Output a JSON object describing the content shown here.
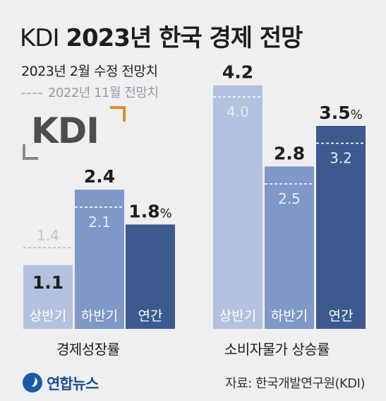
{
  "title_prefix": "KDI",
  "title_main": "2023년 한국 경제 전망",
  "legend": {
    "current": "2023년 2월 수정 전망치",
    "previous": "2022년 11월 전망치"
  },
  "logo": {
    "kdi": "KDI",
    "yonhap": "연합뉴스"
  },
  "source": "자료: 한국개발연구원(KDI)",
  "colors": {
    "bar_light": "#b3c1de",
    "bar_mid": "#7f98c8",
    "bar_dark": "#3d5a8e",
    "prev_line": "#ffffff",
    "prev_label_outside": "#c4c4c8",
    "background": "#efeff1"
  },
  "chart_data": {
    "type": "bar",
    "unit": "%",
    "groups": [
      {
        "name": "경제성장률",
        "categories": [
          "상반기",
          "하반기",
          "연간"
        ],
        "series": [
          {
            "name": "2023년 2월 수정 전망치",
            "values": [
              1.1,
              2.4,
              1.8
            ]
          },
          {
            "name": "2022년 11월 전망치",
            "values": [
              1.4,
              2.1,
              null
            ]
          }
        ],
        "value_labels": [
          "1.1",
          "2.4",
          "1.8"
        ],
        "prev_labels": [
          "1.4",
          "2.1",
          null
        ]
      },
      {
        "name": "소비자물가 상승률",
        "categories": [
          "상반기",
          "하반기",
          "연간"
        ],
        "series": [
          {
            "name": "2023년 2월 수정 전망치",
            "values": [
              4.2,
              2.8,
              3.5
            ]
          },
          {
            "name": "2022년 11월 전망치",
            "values": [
              4.0,
              2.5,
              3.2
            ]
          }
        ],
        "value_labels": [
          "4.2",
          "2.8",
          "3.5"
        ],
        "prev_labels": [
          "4.0",
          "2.5",
          "3.2"
        ]
      }
    ]
  }
}
